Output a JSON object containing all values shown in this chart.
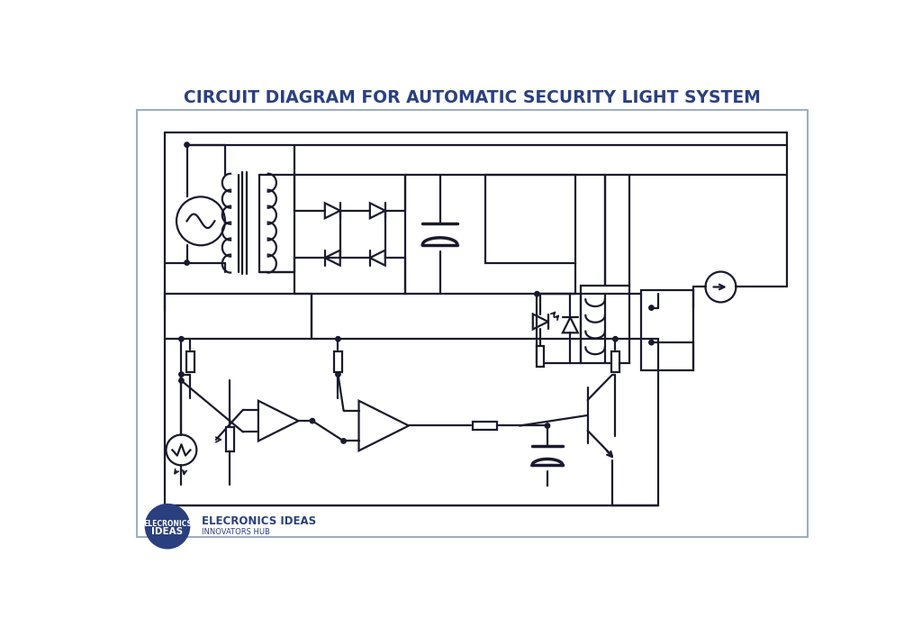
{
  "title": "CIRCUIT DIAGRAM FOR AUTOMATIC SECURITY LIGHT SYSTEM",
  "title_color": "#2a4080",
  "title_fontsize": 13.5,
  "line_color": "#1a1a2e",
  "line_width": 1.6,
  "bg_color": "#ffffff",
  "border_color": "#a0aec0",
  "logo_bg": "#2a3f7e",
  "logo_text1": "ELECRONICS IDEAS",
  "logo_text2": "INNOVATORS HUB",
  "logo_text3": "ELECRONICS",
  "logo_text4": "IDEAS"
}
